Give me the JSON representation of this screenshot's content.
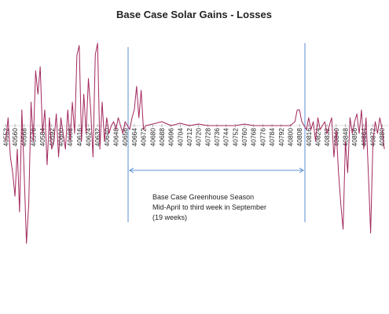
{
  "chart_data": {
    "type": "line",
    "title": "Base Case Solar Gains - Losses",
    "annotation": [
      "Base Case Greenhouse Season",
      "Mid-April to third week in September",
      "(19 weeks)"
    ],
    "xlim": [
      40549,
      40886
    ],
    "ylim": [
      -180,
      120
    ],
    "xticks": [
      40552,
      40560,
      40568,
      40576,
      40584,
      40592,
      40600,
      40608,
      40616,
      40624,
      40632,
      40640,
      40648,
      40656,
      40664,
      40672,
      40680,
      40688,
      40696,
      40704,
      40712,
      40720,
      40728,
      40736,
      40744,
      40752,
      40760,
      40768,
      40776,
      40784,
      40792,
      40800,
      40808,
      40816,
      40824,
      40832,
      40840,
      40848,
      40856,
      40864,
      40872,
      40880
    ],
    "series": [
      {
        "color": "#a3285e",
        "x": [
          40552,
          40554,
          40556,
          40558,
          40560,
          40562,
          40564,
          40566,
          40568,
          40570,
          40572,
          40574,
          40576,
          40578,
          40580,
          40582,
          40584,
          40586,
          40588,
          40590,
          40592,
          40594,
          40596,
          40598,
          40600,
          40602,
          40604,
          40606,
          40608,
          40610,
          40612,
          40614,
          40616,
          40618,
          40620,
          40622,
          40624,
          40626,
          40628,
          40630,
          40632,
          40634,
          40636,
          40638,
          40640,
          40642,
          40644,
          40646,
          40648,
          40650,
          40652,
          40654,
          40656,
          40658,
          40660,
          40662,
          40664,
          40666,
          40668,
          40670,
          40672,
          40674,
          40680,
          40688,
          40696,
          40704,
          40712,
          40720,
          40728,
          40736,
          40744,
          40752,
          40760,
          40768,
          40776,
          40784,
          40792,
          40800,
          40804,
          40806,
          40808,
          40810,
          40812,
          40814,
          40816,
          40818,
          40820,
          40822,
          40824,
          40826,
          40828,
          40830,
          40832,
          40834,
          40836,
          40838,
          40840,
          40842,
          40844,
          40846,
          40848,
          40850,
          40852,
          40854,
          40856,
          40858,
          40860,
          40862,
          40864,
          40866,
          40868,
          40870,
          40872,
          40874,
          40876,
          40878,
          40880,
          40882
        ],
        "values": [
          -20,
          10,
          -40,
          -60,
          -90,
          -30,
          -110,
          20,
          -60,
          -150,
          -100,
          30,
          -20,
          70,
          40,
          75,
          -10,
          20,
          -50,
          10,
          -30,
          -20,
          15,
          -40,
          10,
          -10,
          -30,
          20,
          -20,
          30,
          -10,
          90,
          102,
          -20,
          40,
          -10,
          60,
          20,
          -40,
          90,
          105,
          -30,
          30,
          -20,
          10,
          -10,
          0,
          5,
          -5,
          10,
          0,
          -10,
          5,
          0,
          -5,
          10,
          20,
          50,
          10,
          45,
          -5,
          0,
          2,
          5,
          0,
          3,
          0,
          2,
          0,
          0,
          0,
          0,
          2,
          0,
          0,
          0,
          0,
          0,
          5,
          20,
          20,
          5,
          0,
          -5,
          10,
          -5,
          5,
          -20,
          10,
          -5,
          0,
          5,
          -10,
          0,
          10,
          -40,
          -5,
          -60,
          -100,
          -132,
          -20,
          -60,
          10,
          -10,
          5,
          15,
          -10,
          20,
          -30,
          10,
          -60,
          -137,
          -20,
          5,
          -10,
          10,
          -5,
          -30
        ]
      }
    ]
  }
}
